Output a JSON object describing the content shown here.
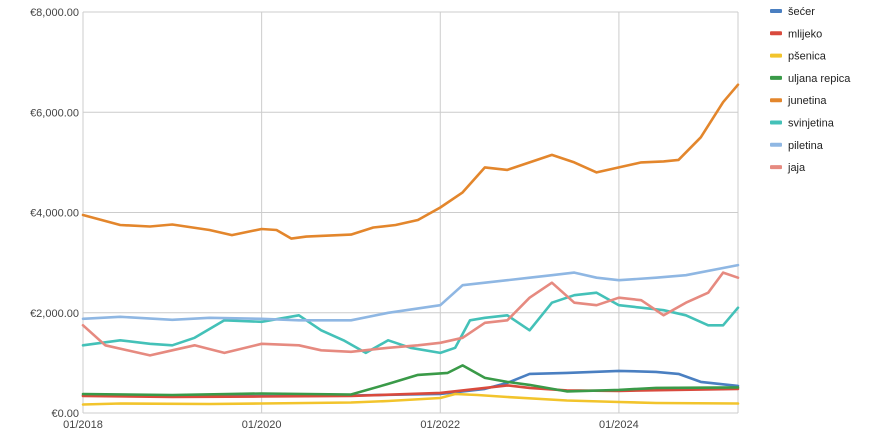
{
  "chart_data": {
    "type": "line",
    "title": "",
    "xlabel": "",
    "ylabel": "",
    "x_range": [
      "2018-01",
      "2025-05"
    ],
    "ylim": [
      0,
      8000
    ],
    "grid": true,
    "legend_position": "right",
    "y_ticks": [
      {
        "value": 0,
        "label": "€0.00"
      },
      {
        "value": 2000,
        "label": "€2,000.00"
      },
      {
        "value": 4000,
        "label": "€4,000.00"
      },
      {
        "value": 6000,
        "label": "€6,000.00"
      },
      {
        "value": 8000,
        "label": "€8,000.00"
      }
    ],
    "x_ticks": [
      {
        "value": "2018-01",
        "label": "01/2018"
      },
      {
        "value": "2020-01",
        "label": "01/2020"
      },
      {
        "value": "2022-01",
        "label": "01/2022"
      },
      {
        "value": "2024-01",
        "label": "01/2024"
      }
    ],
    "series": [
      {
        "name": "šećer",
        "color": "#4a7fc1",
        "points": [
          [
            "2018-01",
            350
          ],
          [
            "2019-01",
            330
          ],
          [
            "2020-01",
            340
          ],
          [
            "2021-01",
            350
          ],
          [
            "2022-01",
            380
          ],
          [
            "2022-07",
            480
          ],
          [
            "2022-10",
            600
          ],
          [
            "2023-01",
            780
          ],
          [
            "2023-06",
            800
          ],
          [
            "2024-01",
            840
          ],
          [
            "2024-06",
            820
          ],
          [
            "2024-09",
            780
          ],
          [
            "2024-12",
            620
          ],
          [
            "2025-05",
            540
          ]
        ]
      },
      {
        "name": "mlijeko",
        "color": "#d94a3d",
        "points": [
          [
            "2018-01",
            340
          ],
          [
            "2019-01",
            320
          ],
          [
            "2020-01",
            330
          ],
          [
            "2021-01",
            340
          ],
          [
            "2022-01",
            400
          ],
          [
            "2022-10",
            550
          ],
          [
            "2023-01",
            500
          ],
          [
            "2023-06",
            450
          ],
          [
            "2024-01",
            440
          ],
          [
            "2025-05",
            480
          ]
        ]
      },
      {
        "name": "pšenica",
        "color": "#f2c42c",
        "points": [
          [
            "2018-01",
            170
          ],
          [
            "2018-06",
            190
          ],
          [
            "2019-06",
            180
          ],
          [
            "2020-01",
            190
          ],
          [
            "2021-01",
            210
          ],
          [
            "2021-06",
            240
          ],
          [
            "2022-01",
            300
          ],
          [
            "2022-03",
            380
          ],
          [
            "2022-06",
            360
          ],
          [
            "2022-10",
            320
          ],
          [
            "2023-06",
            250
          ],
          [
            "2024-01",
            220
          ],
          [
            "2024-06",
            200
          ],
          [
            "2025-05",
            190
          ]
        ]
      },
      {
        "name": "uljana repica",
        "color": "#3a9a48",
        "points": [
          [
            "2018-01",
            380
          ],
          [
            "2019-01",
            360
          ],
          [
            "2020-01",
            390
          ],
          [
            "2021-01",
            370
          ],
          [
            "2021-06",
            580
          ],
          [
            "2021-10",
            760
          ],
          [
            "2022-02",
            800
          ],
          [
            "2022-04",
            950
          ],
          [
            "2022-07",
            700
          ],
          [
            "2022-10",
            620
          ],
          [
            "2023-01",
            560
          ],
          [
            "2023-06",
            430
          ],
          [
            "2024-01",
            460
          ],
          [
            "2024-06",
            500
          ],
          [
            "2025-05",
            510
          ]
        ]
      },
      {
        "name": "junetina",
        "color": "#e3862c",
        "points": [
          [
            "2018-01",
            3950
          ],
          [
            "2018-06",
            3750
          ],
          [
            "2018-10",
            3720
          ],
          [
            "2019-01",
            3760
          ],
          [
            "2019-06",
            3650
          ],
          [
            "2019-09",
            3550
          ],
          [
            "2020-01",
            3670
          ],
          [
            "2020-03",
            3650
          ],
          [
            "2020-05",
            3480
          ],
          [
            "2020-07",
            3520
          ],
          [
            "2021-01",
            3560
          ],
          [
            "2021-04",
            3700
          ],
          [
            "2021-07",
            3750
          ],
          [
            "2021-10",
            3850
          ],
          [
            "2022-01",
            4100
          ],
          [
            "2022-04",
            4400
          ],
          [
            "2022-07",
            4900
          ],
          [
            "2022-10",
            4850
          ],
          [
            "2023-01",
            5000
          ],
          [
            "2023-04",
            5150
          ],
          [
            "2023-07",
            5000
          ],
          [
            "2023-10",
            4800
          ],
          [
            "2024-01",
            4900
          ],
          [
            "2024-04",
            5000
          ],
          [
            "2024-07",
            5020
          ],
          [
            "2024-09",
            5050
          ],
          [
            "2024-12",
            5500
          ],
          [
            "2025-03",
            6200
          ],
          [
            "2025-05",
            6550
          ]
        ]
      },
      {
        "name": "svinjetina",
        "color": "#44c1b8",
        "points": [
          [
            "2018-01",
            1350
          ],
          [
            "2018-06",
            1450
          ],
          [
            "2018-10",
            1380
          ],
          [
            "2019-01",
            1350
          ],
          [
            "2019-04",
            1500
          ],
          [
            "2019-08",
            1850
          ],
          [
            "2020-01",
            1820
          ],
          [
            "2020-06",
            1950
          ],
          [
            "2020-09",
            1650
          ],
          [
            "2020-12",
            1450
          ],
          [
            "2021-03",
            1200
          ],
          [
            "2021-06",
            1450
          ],
          [
            "2021-09",
            1300
          ],
          [
            "2022-01",
            1200
          ],
          [
            "2022-03",
            1300
          ],
          [
            "2022-05",
            1850
          ],
          [
            "2022-07",
            1900
          ],
          [
            "2022-10",
            1950
          ],
          [
            "2023-01",
            1650
          ],
          [
            "2023-04",
            2200
          ],
          [
            "2023-07",
            2350
          ],
          [
            "2023-10",
            2400
          ],
          [
            "2024-01",
            2150
          ],
          [
            "2024-04",
            2100
          ],
          [
            "2024-07",
            2050
          ],
          [
            "2024-10",
            1950
          ],
          [
            "2025-01",
            1750
          ],
          [
            "2025-03",
            1750
          ],
          [
            "2025-05",
            2100
          ]
        ]
      },
      {
        "name": "piletina",
        "color": "#8fb7e3",
        "points": [
          [
            "2018-01",
            1880
          ],
          [
            "2018-06",
            1920
          ],
          [
            "2019-01",
            1860
          ],
          [
            "2019-06",
            1900
          ],
          [
            "2020-01",
            1880
          ],
          [
            "2020-06",
            1850
          ],
          [
            "2021-01",
            1850
          ],
          [
            "2021-06",
            2000
          ],
          [
            "2022-01",
            2150
          ],
          [
            "2022-04",
            2550
          ],
          [
            "2022-07",
            2600
          ],
          [
            "2022-10",
            2650
          ],
          [
            "2023-01",
            2700
          ],
          [
            "2023-04",
            2750
          ],
          [
            "2023-07",
            2800
          ],
          [
            "2023-10",
            2700
          ],
          [
            "2024-01",
            2650
          ],
          [
            "2024-06",
            2700
          ],
          [
            "2024-10",
            2750
          ],
          [
            "2025-05",
            2950
          ]
        ]
      },
      {
        "name": "jaja",
        "color": "#e68a80",
        "points": [
          [
            "2018-01",
            1750
          ],
          [
            "2018-04",
            1350
          ],
          [
            "2018-10",
            1150
          ],
          [
            "2019-01",
            1250
          ],
          [
            "2019-04",
            1350
          ],
          [
            "2019-08",
            1200
          ],
          [
            "2020-01",
            1380
          ],
          [
            "2020-06",
            1350
          ],
          [
            "2020-09",
            1250
          ],
          [
            "2021-01",
            1220
          ],
          [
            "2021-06",
            1300
          ],
          [
            "2021-10",
            1350
          ],
          [
            "2022-01",
            1400
          ],
          [
            "2022-04",
            1500
          ],
          [
            "2022-07",
            1800
          ],
          [
            "2022-10",
            1850
          ],
          [
            "2023-01",
            2300
          ],
          [
            "2023-04",
            2600
          ],
          [
            "2023-07",
            2200
          ],
          [
            "2023-10",
            2150
          ],
          [
            "2024-01",
            2300
          ],
          [
            "2024-04",
            2250
          ],
          [
            "2024-07",
            1950
          ],
          [
            "2024-10",
            2200
          ],
          [
            "2025-01",
            2400
          ],
          [
            "2025-03",
            2800
          ],
          [
            "2025-05",
            2700
          ]
        ]
      }
    ]
  }
}
